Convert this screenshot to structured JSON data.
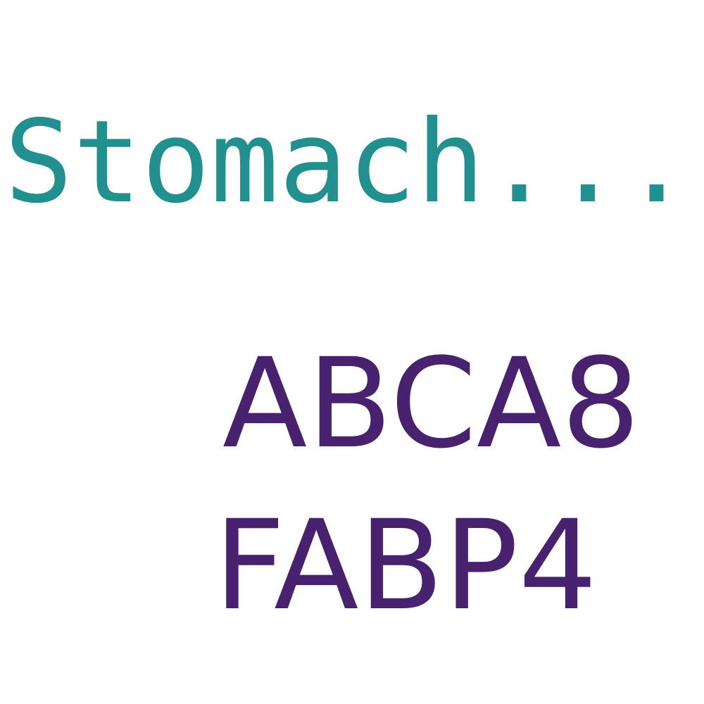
{
  "words": {
    "tissue": {
      "text": "Stomach...",
      "color": "#22908e"
    },
    "genes": [
      {
        "text": "ABCA8",
        "color": "#48216f"
      },
      {
        "text": "FABP4",
        "color": "#48216f"
      }
    ]
  }
}
